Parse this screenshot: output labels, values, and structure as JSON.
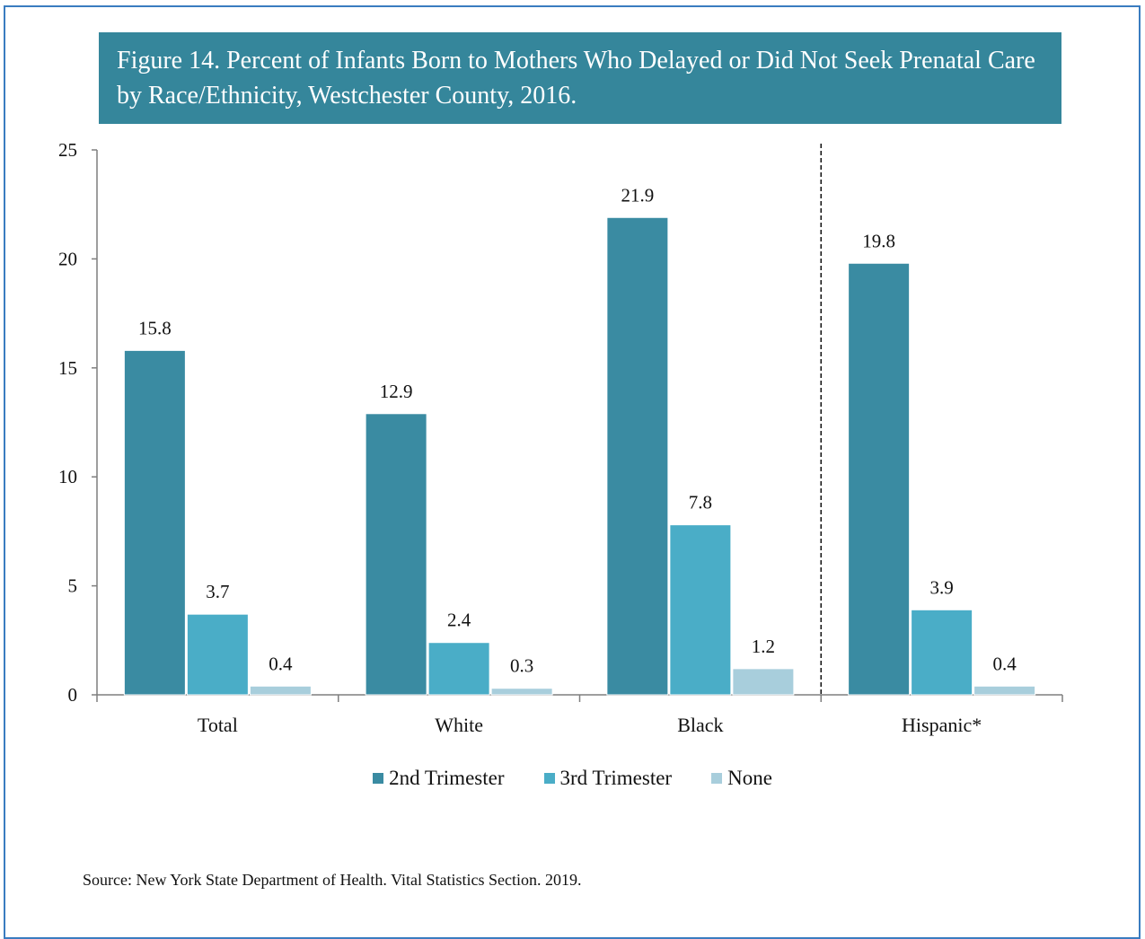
{
  "title": "Figure 14. Percent of Infants Born to Mothers Who Delayed or Did Not Seek Prenatal Care by Race/Ethnicity, Westchester County, 2016.",
  "source": "Source: New York State Department of Health. Vital Statistics Section. 2019.",
  "colors": {
    "frame": "#3a7cc0",
    "banner": "#35869b",
    "second_trimester": "#3a8ba2",
    "third_trimester": "#4aadc7",
    "none": "#a8cedc",
    "axis": "#7f7f7f"
  },
  "chart_data": {
    "type": "bar",
    "title": "Figure 14. Percent of Infants Born to Mothers Who Delayed or Did Not Seek Prenatal Care by Race/Ethnicity, Westchester County, 2016.",
    "xlabel": "",
    "ylabel": "",
    "categories": [
      "Total",
      "White",
      "Black",
      "Hispanic*"
    ],
    "series": [
      {
        "name": "2nd Trimester",
        "values": [
          15.8,
          12.9,
          21.9,
          19.8
        ],
        "labels": [
          "15.8",
          "12.9",
          "21.9",
          "19.8"
        ]
      },
      {
        "name": "3rd Trimester",
        "values": [
          3.7,
          2.4,
          7.8,
          3.9
        ],
        "labels": [
          "3.7",
          "2.4",
          "7.8",
          "3.9"
        ]
      },
      {
        "name": "None",
        "values": [
          0.4,
          0.3,
          1.2,
          0.4
        ],
        "labels": [
          "0.4",
          "0.3",
          "1.2",
          "0.4"
        ]
      }
    ],
    "ylim": [
      0,
      25
    ],
    "yticks": [
      0,
      5,
      10,
      15,
      20,
      25
    ],
    "ytick_labels": [
      "0",
      "5",
      "10",
      "15",
      "20",
      "25"
    ],
    "grid": false,
    "legend_position": "bottom",
    "separator_after_category": "Black"
  }
}
